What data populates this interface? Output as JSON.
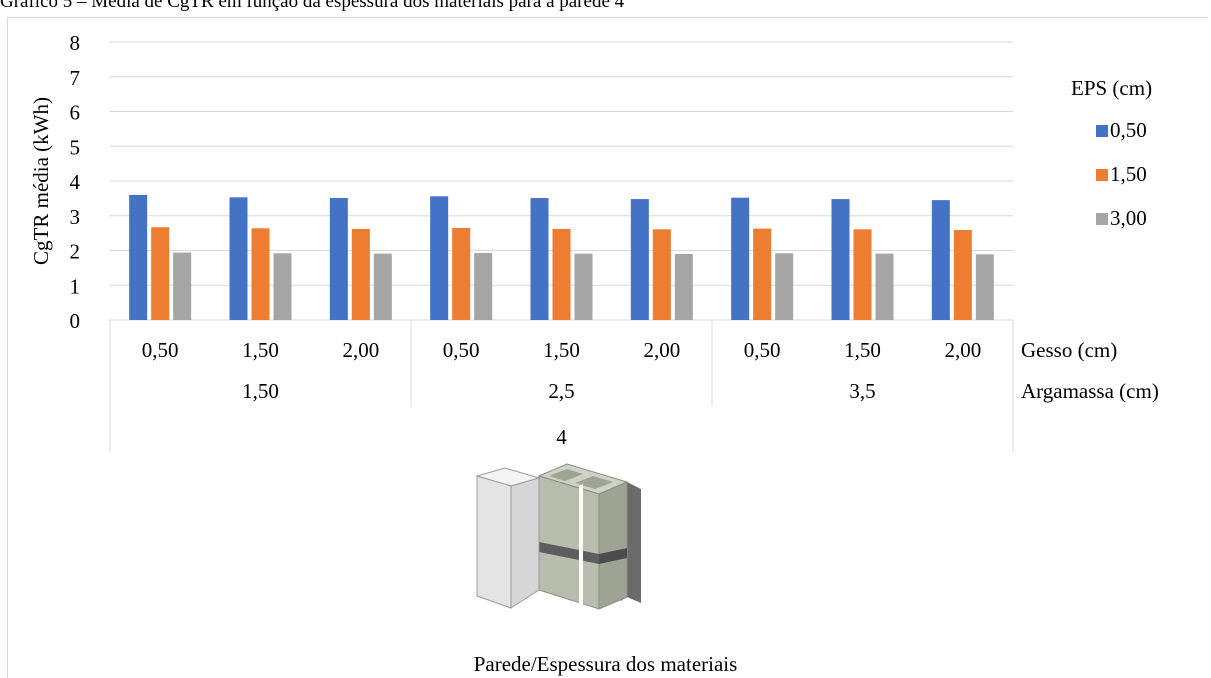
{
  "caption": "Gráfico 5 – Média de CgTR em função da espessura dos materiais para a parede 4",
  "chart_data": {
    "type": "bar",
    "ylabel": "CgTR média (kWh)",
    "xlabel": "Parede/Espessura dos materiais",
    "ylim": [
      0,
      8
    ],
    "yticks": [
      0,
      1,
      2,
      3,
      4,
      5,
      6,
      7,
      8
    ],
    "grid": true,
    "legend": {
      "title": "EPS (cm)",
      "placement": "right"
    },
    "level_labels": {
      "gesso": "Gesso (cm)",
      "argamassa": "Argamassa (cm)"
    },
    "categories": [
      "0,50",
      "1,50",
      "2,00",
      "0,50",
      "1,50",
      "2,00",
      "0,50",
      "1,50",
      "2,00"
    ],
    "groups": [
      "1,50",
      "2,5",
      "3,5"
    ],
    "wall": "4",
    "series": [
      {
        "name": "0,50",
        "color": "#4472c4",
        "values": [
          3.6,
          3.53,
          3.51,
          3.56,
          3.51,
          3.48,
          3.52,
          3.48,
          3.45
        ]
      },
      {
        "name": "1,50",
        "color": "#ed7d31",
        "values": [
          2.67,
          2.64,
          2.62,
          2.65,
          2.62,
          2.61,
          2.63,
          2.61,
          2.59
        ]
      },
      {
        "name": "3,00",
        "color": "#a5a5a5",
        "values": [
          1.94,
          1.92,
          1.91,
          1.93,
          1.91,
          1.9,
          1.92,
          1.91,
          1.89
        ]
      }
    ]
  }
}
